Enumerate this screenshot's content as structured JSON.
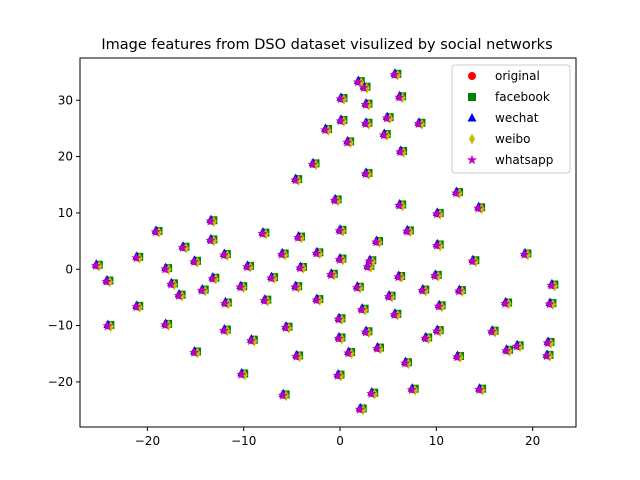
{
  "chart_data": {
    "type": "scatter",
    "title": "Image features from DSO dataset visulized by social networks",
    "xlabel": "",
    "ylabel": "",
    "xlim": [
      -27,
      24.5
    ],
    "ylim": [
      -28,
      37.5
    ],
    "xticks": [
      -20,
      -10,
      0,
      10,
      20
    ],
    "yticks": [
      -20,
      -10,
      0,
      10,
      20,
      30
    ],
    "xtick_labels": [
      "−20",
      "−10",
      "0",
      "10",
      "20"
    ],
    "ytick_labels": [
      "−20",
      "−10",
      "0",
      "10",
      "20",
      "30"
    ],
    "grid": false,
    "legend_position": "top-right",
    "series": [
      {
        "name": "original",
        "marker": "circle",
        "color": "#ff0000"
      },
      {
        "name": "facebook",
        "marker": "square",
        "color": "#008000"
      },
      {
        "name": "wechat",
        "marker": "triangle",
        "color": "#0000ff"
      },
      {
        "name": "weibo",
        "marker": "diamond",
        "color": "#bfbf00"
      },
      {
        "name": "whatsapp",
        "marker": "star",
        "color": "#bf00bf"
      }
    ],
    "points": [
      [
        2.0,
        33.3
      ],
      [
        5.8,
        34.6
      ],
      [
        0.2,
        30.3
      ],
      [
        6.3,
        30.6
      ],
      [
        2.8,
        29.3
      ],
      [
        2.6,
        32.3
      ],
      [
        0.2,
        26.4
      ],
      [
        2.8,
        25.9
      ],
      [
        5.0,
        26.9
      ],
      [
        8.3,
        25.9
      ],
      [
        -1.4,
        24.8
      ],
      [
        4.7,
        23.9
      ],
      [
        0.9,
        22.6
      ],
      [
        6.4,
        20.9
      ],
      [
        -2.7,
        18.7
      ],
      [
        2.8,
        17.0
      ],
      [
        -4.5,
        15.9
      ],
      [
        -0.4,
        12.3
      ],
      [
        6.3,
        11.4
      ],
      [
        12.2,
        13.6
      ],
      [
        14.5,
        10.9
      ],
      [
        10.2,
        9.9
      ],
      [
        -13.3,
        8.6
      ],
      [
        0.1,
        6.9
      ],
      [
        7.1,
        6.8
      ],
      [
        -19.0,
        6.7
      ],
      [
        -7.9,
        6.4
      ],
      [
        -4.2,
        5.7
      ],
      [
        -13.3,
        5.2
      ],
      [
        3.9,
        4.9
      ],
      [
        -16.2,
        3.9
      ],
      [
        10.2,
        4.3
      ],
      [
        -21.0,
        2.1
      ],
      [
        -11.9,
        2.6
      ],
      [
        -5.9,
        2.7
      ],
      [
        -2.3,
        2.9
      ],
      [
        0.1,
        1.8
      ],
      [
        19.3,
        2.7
      ],
      [
        -15.0,
        1.4
      ],
      [
        -25.2,
        0.7
      ],
      [
        -9.5,
        0.5
      ],
      [
        -4.0,
        0.3
      ],
      [
        3.0,
        0.5
      ],
      [
        3.2,
        1.5
      ],
      [
        13.9,
        1.5
      ],
      [
        -18.0,
        0.1
      ],
      [
        -0.8,
        -0.9
      ],
      [
        6.2,
        -1.3
      ],
      [
        10.0,
        -1.1
      ],
      [
        -13.1,
        -1.6
      ],
      [
        -7.0,
        -1.5
      ],
      [
        -24.1,
        -2.1
      ],
      [
        -17.4,
        -2.6
      ],
      [
        -10.2,
        -3.1
      ],
      [
        -4.5,
        -3.1
      ],
      [
        1.9,
        -3.2
      ],
      [
        8.7,
        -3.7
      ],
      [
        12.5,
        -3.8
      ],
      [
        22.1,
        -2.8
      ],
      [
        -14.2,
        -3.7
      ],
      [
        -16.6,
        -4.6
      ],
      [
        5.2,
        -4.8
      ],
      [
        -7.7,
        -5.5
      ],
      [
        -2.3,
        -5.4
      ],
      [
        17.3,
        -6.0
      ],
      [
        -21.0,
        -6.6
      ],
      [
        -11.8,
        -6.0
      ],
      [
        2.4,
        -7.1
      ],
      [
        10.4,
        -6.5
      ],
      [
        21.9,
        -6.1
      ],
      [
        5.8,
        -8.0
      ],
      [
        0.0,
        -8.8
      ],
      [
        -18.0,
        -9.8
      ],
      [
        -24.0,
        -10.0
      ],
      [
        -5.5,
        -10.3
      ],
      [
        -11.9,
        -10.8
      ],
      [
        2.8,
        -11.1
      ],
      [
        10.2,
        -10.9
      ],
      [
        15.9,
        -11.0
      ],
      [
        -9.1,
        -12.6
      ],
      [
        0.0,
        -12.2
      ],
      [
        9.0,
        -12.2
      ],
      [
        21.7,
        -13.0
      ],
      [
        -15.0,
        -14.7
      ],
      [
        1.0,
        -14.8
      ],
      [
        4.0,
        -14.0
      ],
      [
        18.5,
        -13.6
      ],
      [
        17.4,
        -14.4
      ],
      [
        -4.4,
        -15.4
      ],
      [
        12.3,
        -15.5
      ],
      [
        21.6,
        -15.3
      ],
      [
        6.9,
        -16.6
      ],
      [
        -10.1,
        -18.6
      ],
      [
        -0.1,
        -18.8
      ],
      [
        -5.8,
        -22.3
      ],
      [
        3.4,
        -22.0
      ],
      [
        7.6,
        -21.3
      ],
      [
        14.6,
        -21.3
      ],
      [
        2.2,
        -24.8
      ]
    ],
    "jitter": [
      [
        0.0,
        0.0
      ],
      [
        0.15,
        0.1
      ],
      [
        -0.1,
        0.2
      ],
      [
        0.2,
        -0.15
      ],
      [
        -0.15,
        -0.1
      ]
    ]
  },
  "legend": {
    "items": [
      "original",
      "facebook",
      "wechat",
      "weibo",
      "whatsapp"
    ]
  }
}
